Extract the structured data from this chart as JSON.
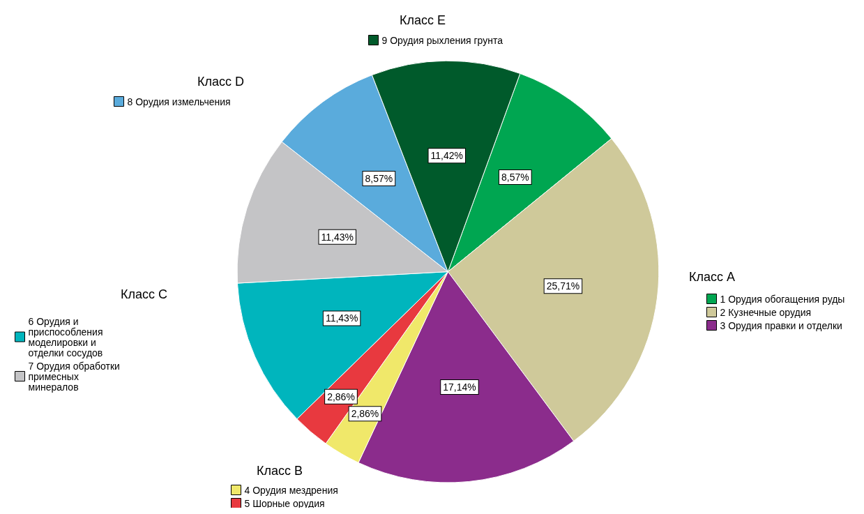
{
  "chart_data": {
    "type": "pie",
    "categories": [
      "1 Орудия обогащения руды",
      "2 Кузнечные орудия",
      "3 Орудия правки и отделки",
      "4 Орудия мездрения",
      "5 Шорные орудия",
      "6 Орудия и приспособления моделировки и отделки сосудов",
      "7 Орудия обработки примесных минералов",
      "8 Орудия измельчения",
      "9 Орудия рыхления грунта"
    ],
    "values": [
      8.57,
      25.71,
      17.14,
      2.86,
      2.86,
      11.43,
      11.43,
      8.57,
      11.42
    ],
    "value_labels": [
      "8,57%",
      "25,71%",
      "17,14%",
      "2,86%",
      "2,86%",
      "11,43%",
      "11,43%",
      "8,57%",
      "11,42%"
    ],
    "colors": [
      "#00a651",
      "#cfc99a",
      "#8b2c8c",
      "#f0e86a",
      "#e8393f",
      "#00b5bd",
      "#c4c4c6",
      "#5aabdc",
      "#005a2b"
    ],
    "annotations": [
      "Класс A",
      "Класс B",
      "Класс C",
      "Класс D",
      "Класс E"
    ],
    "legend": "right"
  }
}
